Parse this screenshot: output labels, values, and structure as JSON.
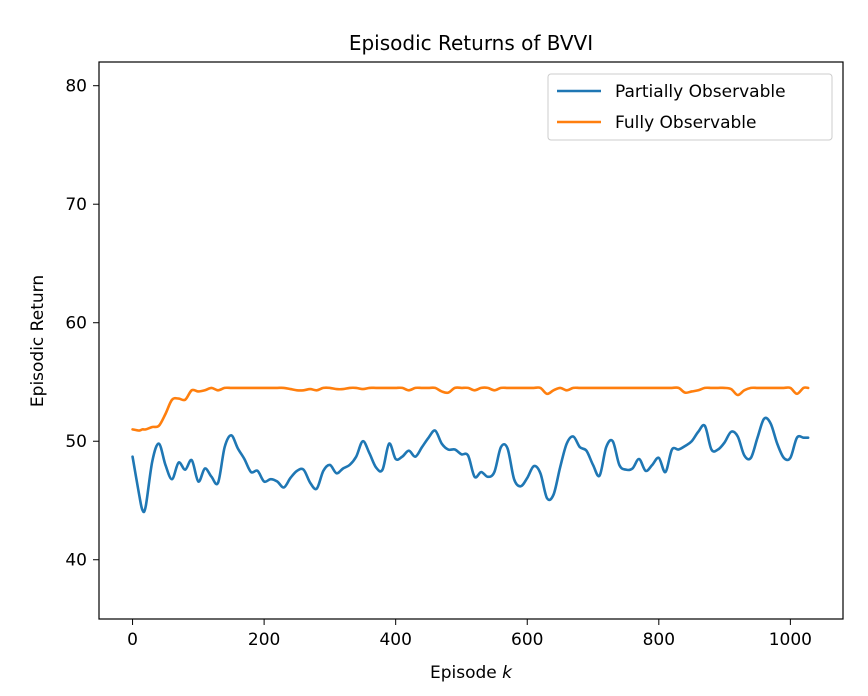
{
  "chart_data": {
    "type": "line",
    "title": "Episodic Returns of BVVI",
    "xlabel": "Episode",
    "xlabel_var": "k",
    "ylabel": "Episodic Return",
    "xlim": [
      -51,
      1080
    ],
    "ylim": [
      35,
      82
    ],
    "xticks": [
      0,
      200,
      400,
      600,
      800,
      1000
    ],
    "yticks": [
      40,
      50,
      60,
      70,
      80
    ],
    "grid": false,
    "legend_position": "top-right",
    "series": [
      {
        "name": "Partially Observable",
        "color": "#1f77b4",
        "x": [
          0,
          10,
          15,
          20,
          30,
          40,
          50,
          60,
          70,
          80,
          90,
          100,
          110,
          120,
          130,
          140,
          150,
          160,
          170,
          180,
          190,
          200,
          210,
          220,
          230,
          240,
          250,
          260,
          270,
          280,
          290,
          300,
          310,
          320,
          330,
          340,
          350,
          360,
          370,
          380,
          390,
          400,
          410,
          420,
          430,
          440,
          450,
          460,
          470,
          480,
          490,
          500,
          510,
          520,
          530,
          540,
          550,
          560,
          570,
          580,
          590,
          600,
          610,
          620,
          630,
          640,
          650,
          660,
          670,
          680,
          690,
          700,
          710,
          720,
          730,
          740,
          750,
          760,
          770,
          780,
          790,
          800,
          810,
          820,
          830,
          840,
          850,
          860,
          870,
          880,
          890,
          900,
          910,
          920,
          930,
          940,
          950,
          960,
          970,
          980,
          990,
          1000,
          1010,
          1020,
          1027
        ],
        "y": [
          48.7,
          45.5,
          44.2,
          44.5,
          48.3,
          49.8,
          48.0,
          46.8,
          48.2,
          47.6,
          48.4,
          46.6,
          47.7,
          47.0,
          46.5,
          49.5,
          50.5,
          49.4,
          48.5,
          47.4,
          47.5,
          46.6,
          46.8,
          46.6,
          46.1,
          46.9,
          47.5,
          47.6,
          46.5,
          46.0,
          47.5,
          48.0,
          47.3,
          47.7,
          48.0,
          48.7,
          50.0,
          49.0,
          47.8,
          47.6,
          49.8,
          48.5,
          48.7,
          49.2,
          48.7,
          49.5,
          50.3,
          50.9,
          49.8,
          49.3,
          49.3,
          48.9,
          48.8,
          47.0,
          47.4,
          47.0,
          47.4,
          49.5,
          49.4,
          46.8,
          46.2,
          46.9,
          47.9,
          47.3,
          45.2,
          45.5,
          47.8,
          49.8,
          50.4,
          49.5,
          49.2,
          48.0,
          47.1,
          49.5,
          50.0,
          48.0,
          47.6,
          47.7,
          48.5,
          47.5,
          48.0,
          48.6,
          47.4,
          49.3,
          49.3,
          49.6,
          50.0,
          50.8,
          51.3,
          49.3,
          49.3,
          49.9,
          50.8,
          50.4,
          48.8,
          48.6,
          50.3,
          51.9,
          51.5,
          49.8,
          48.6,
          48.6,
          50.3,
          50.3,
          50.3
        ]
      },
      {
        "name": "Fully Observable",
        "color": "#ff7f0e",
        "x": [
          0,
          10,
          15,
          20,
          30,
          40,
          50,
          60,
          70,
          80,
          90,
          100,
          110,
          120,
          130,
          140,
          150,
          160,
          170,
          180,
          190,
          200,
          210,
          220,
          230,
          240,
          250,
          260,
          270,
          280,
          290,
          300,
          310,
          320,
          330,
          340,
          350,
          360,
          370,
          380,
          390,
          400,
          410,
          420,
          430,
          440,
          450,
          460,
          470,
          480,
          490,
          500,
          510,
          520,
          530,
          540,
          550,
          560,
          570,
          580,
          590,
          600,
          610,
          620,
          630,
          640,
          650,
          660,
          670,
          680,
          690,
          700,
          710,
          720,
          730,
          740,
          750,
          760,
          770,
          780,
          790,
          800,
          810,
          820,
          830,
          840,
          850,
          860,
          870,
          880,
          890,
          900,
          910,
          920,
          930,
          940,
          950,
          960,
          970,
          980,
          990,
          1000,
          1010,
          1020,
          1027
        ],
        "y": [
          51.0,
          50.9,
          51.0,
          51.0,
          51.2,
          51.3,
          52.3,
          53.5,
          53.6,
          53.5,
          54.3,
          54.2,
          54.3,
          54.5,
          54.3,
          54.5,
          54.5,
          54.5,
          54.5,
          54.5,
          54.5,
          54.5,
          54.5,
          54.5,
          54.5,
          54.4,
          54.3,
          54.3,
          54.4,
          54.3,
          54.5,
          54.5,
          54.4,
          54.4,
          54.5,
          54.5,
          54.4,
          54.5,
          54.5,
          54.5,
          54.5,
          54.5,
          54.5,
          54.3,
          54.5,
          54.5,
          54.5,
          54.5,
          54.2,
          54.1,
          54.5,
          54.5,
          54.5,
          54.3,
          54.5,
          54.5,
          54.3,
          54.5,
          54.5,
          54.5,
          54.5,
          54.5,
          54.5,
          54.5,
          54.0,
          54.3,
          54.5,
          54.3,
          54.5,
          54.5,
          54.5,
          54.5,
          54.5,
          54.5,
          54.5,
          54.5,
          54.5,
          54.5,
          54.5,
          54.5,
          54.5,
          54.5,
          54.5,
          54.5,
          54.5,
          54.1,
          54.2,
          54.3,
          54.5,
          54.5,
          54.5,
          54.5,
          54.4,
          53.9,
          54.3,
          54.5,
          54.5,
          54.5,
          54.5,
          54.5,
          54.5,
          54.5,
          54.0,
          54.5,
          54.5
        ]
      }
    ]
  }
}
